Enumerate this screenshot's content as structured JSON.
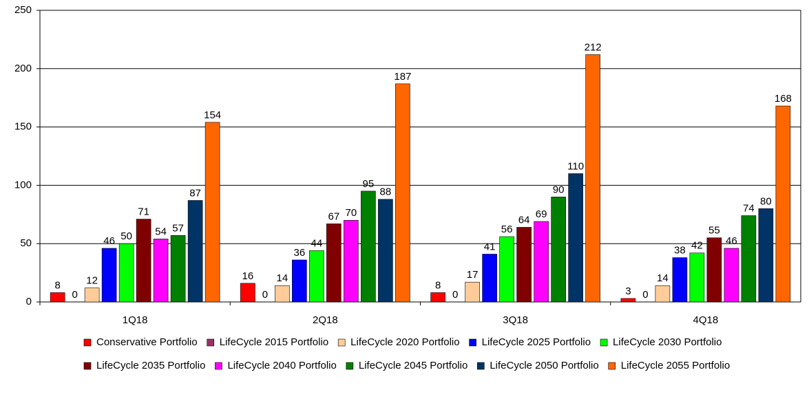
{
  "chart_data": {
    "type": "bar",
    "categories": [
      "1Q18",
      "2Q18",
      "3Q18",
      "4Q18"
    ],
    "series": [
      {
        "name": "Conservative Portfolio",
        "color": "#ff0000",
        "values": [
          8,
          16,
          8,
          3
        ]
      },
      {
        "name": "LifeCycle 2015 Portfolio",
        "color": "#993366",
        "values": [
          0,
          0,
          0,
          0
        ]
      },
      {
        "name": "LifeCycle 2020 Portfolio",
        "color": "#ffcc99",
        "values": [
          12,
          14,
          17,
          14
        ]
      },
      {
        "name": "LifeCycle 2025 Portfolio",
        "color": "#0000ff",
        "values": [
          46,
          36,
          41,
          38
        ]
      },
      {
        "name": "LifeCycle 2030 Portfolio",
        "color": "#00ff00",
        "values": [
          50,
          44,
          56,
          42
        ]
      },
      {
        "name": "LifeCycle 2035 Portfolio",
        "color": "#800000",
        "values": [
          71,
          67,
          64,
          55
        ]
      },
      {
        "name": "LifeCycle 2040 Portfolio",
        "color": "#ff00ff",
        "values": [
          54,
          70,
          69,
          46
        ]
      },
      {
        "name": "LifeCycle 2045 Portfolio",
        "color": "#008000",
        "values": [
          57,
          95,
          90,
          74
        ]
      },
      {
        "name": "LifeCycle 2050 Portfolio",
        "color": "#003366",
        "values": [
          87,
          88,
          110,
          80
        ]
      },
      {
        "name": "LifeCycle 2055 Portfolio",
        "color": "#ff6600",
        "values": [
          154,
          187,
          212,
          168
        ]
      }
    ],
    "ylim": [
      0,
      250
    ],
    "yticks": [
      0,
      50,
      100,
      150,
      200,
      250
    ],
    "grid": true,
    "legend": "bottom"
  }
}
